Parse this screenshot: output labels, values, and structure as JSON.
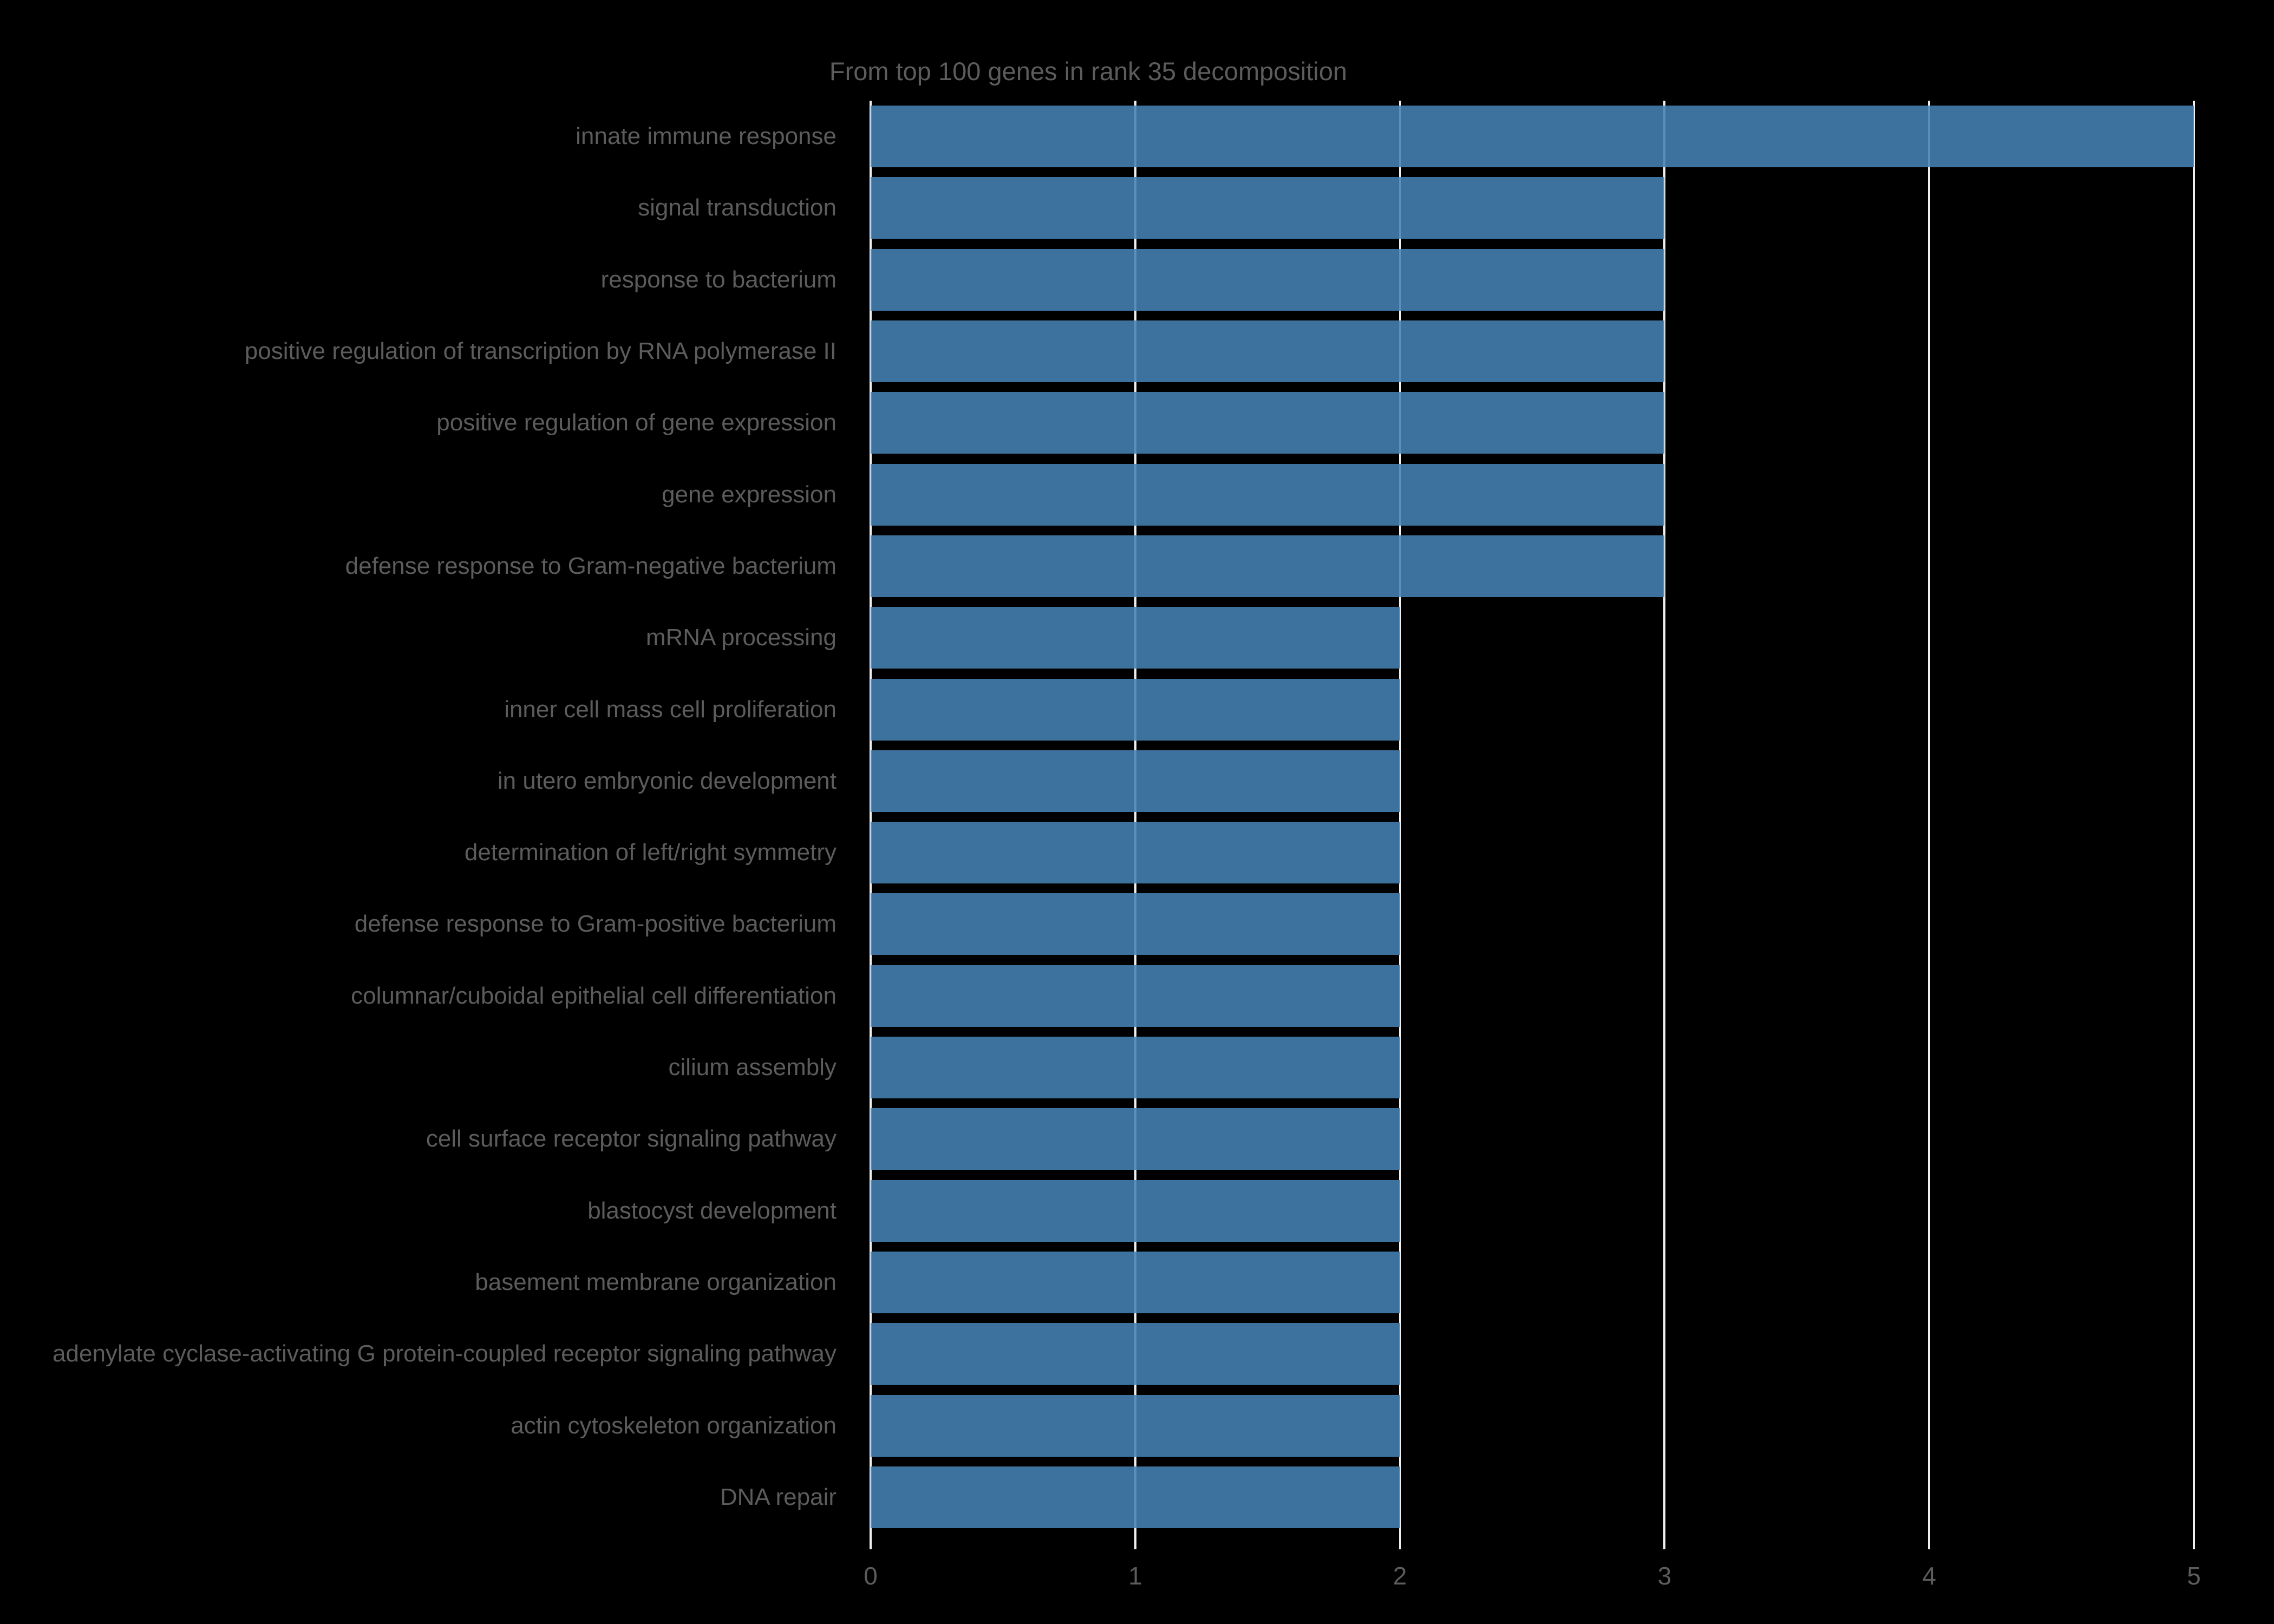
{
  "chart_data": {
    "type": "bar",
    "orientation": "horizontal",
    "title": "From top 100 genes in rank 35 decomposition",
    "categories": [
      "innate immune response",
      "signal transduction",
      "response to bacterium",
      "positive regulation of transcription by RNA polymerase II",
      "positive regulation of gene expression",
      "gene expression",
      "defense response to Gram-negative bacterium",
      "mRNA processing",
      "inner cell mass cell proliferation",
      "in utero embryonic development",
      "determination of left/right symmetry",
      "defense response to Gram-positive bacterium",
      "columnar/cuboidal epithelial cell differentiation",
      "cilium assembly",
      "cell surface receptor signaling pathway",
      "blastocyst development",
      "basement membrane organization",
      "adenylate cyclase-activating G protein-coupled receptor signaling pathway",
      "actin cytoskeleton organization",
      "DNA repair"
    ],
    "values": [
      5,
      3,
      3,
      3,
      3,
      3,
      3,
      2,
      2,
      2,
      2,
      2,
      2,
      2,
      2,
      2,
      2,
      2,
      2,
      2
    ],
    "xticks": [
      0,
      1,
      2,
      3,
      4,
      5
    ],
    "xlim": [
      0,
      5.3
    ],
    "xlabel": "",
    "ylabel": "",
    "grid": true,
    "legend_position": "none",
    "colors": {
      "background": "#000000",
      "bar": "#4682b4",
      "gridline": "#efefef",
      "text": "#5c5c5c"
    }
  }
}
